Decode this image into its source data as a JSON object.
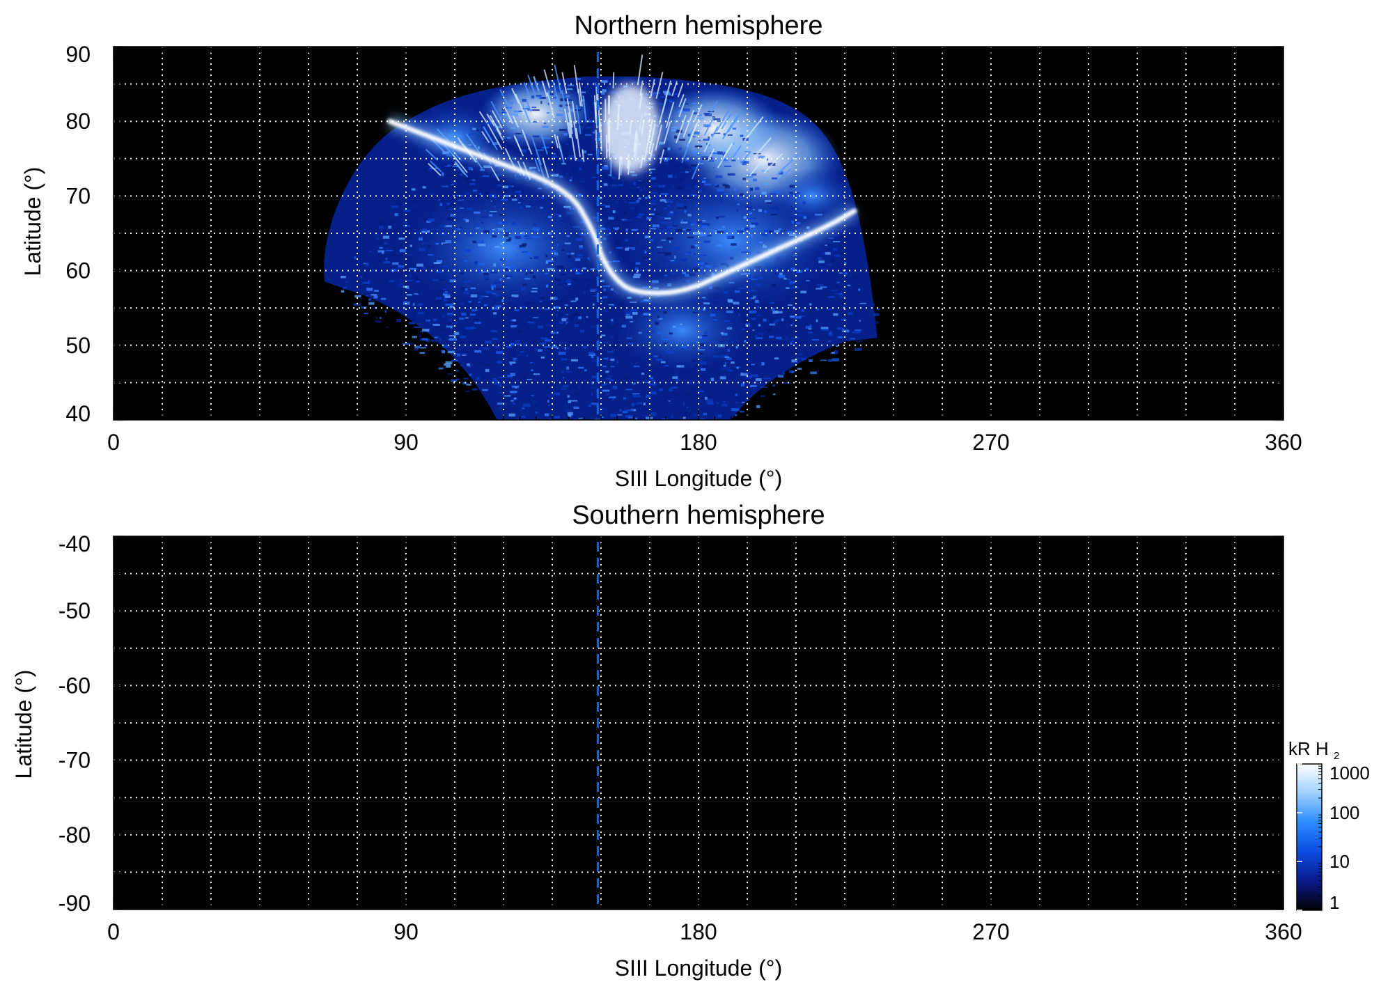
{
  "chart_data": [
    {
      "type": "heatmap",
      "title": "Northern hemisphere",
      "xlabel": "SIII Longitude (°)",
      "ylabel": "Latitude (°)",
      "xlim": [
        0,
        360
      ],
      "ylim": [
        40,
        90
      ],
      "xticks": [
        0,
        90,
        180,
        270,
        360
      ],
      "xtick_labels": [
        "0",
        "90",
        "180",
        "270",
        "360"
      ],
      "yticks": [
        40,
        50,
        60,
        70,
        80,
        90
      ],
      "ytick_labels": [
        "40",
        "50",
        "60",
        "70",
        "80",
        "90"
      ],
      "grid": true,
      "grid_x_step": 15,
      "grid_y_step": 5,
      "reference_longitude": 149,
      "emission": {
        "coverage_longitude": [
          65,
          235
        ],
        "coverage_top_latitude": 86,
        "main_oval": [
          [
            85,
            80
          ],
          [
            100,
            77.5
          ],
          [
            115,
            75
          ],
          [
            140,
            71
          ],
          [
            148,
            65
          ],
          [
            150,
            62
          ],
          [
            154,
            59
          ],
          [
            160,
            57
          ],
          [
            175,
            57
          ],
          [
            190,
            60
          ],
          [
            205,
            63
          ],
          [
            220,
            66
          ],
          [
            228,
            68
          ]
        ],
        "polar_bright_region": [
          150,
          168,
          73,
          85
        ],
        "units": "kR H₂"
      }
    },
    {
      "type": "heatmap",
      "title": "Southern hemisphere",
      "xlabel": "SIII Longitude (°)",
      "ylabel": "Latitude (°)",
      "xlim": [
        0,
        360
      ],
      "ylim": [
        -90,
        -40
      ],
      "xticks": [
        0,
        90,
        180,
        270,
        360
      ],
      "xtick_labels": [
        "0",
        "90",
        "180",
        "270",
        "360"
      ],
      "yticks": [
        -40,
        -50,
        -60,
        -70,
        -80,
        -90
      ],
      "ytick_labels": [
        "-40",
        "-50",
        "-60",
        "-70",
        "-80",
        "-90"
      ],
      "grid": true,
      "grid_x_step": 15,
      "grid_y_step": 5,
      "reference_longitude": 149
    }
  ],
  "colorbar": {
    "label_prefix": "kR H",
    "label_subscript": "2",
    "scale": "log",
    "range": [
      1,
      1000
    ],
    "ticks": [
      1,
      10,
      100,
      1000
    ],
    "tick_labels": [
      "1",
      "10",
      "100",
      "1000"
    ],
    "colors": [
      "#000000",
      "#0a1a8c",
      "#0b4ce0",
      "#2a8cff",
      "#9fd0ff",
      "#ffffff"
    ]
  },
  "colors": {
    "background": "#000000",
    "grid": "#ffffff",
    "reference_line": "#1464dc"
  }
}
